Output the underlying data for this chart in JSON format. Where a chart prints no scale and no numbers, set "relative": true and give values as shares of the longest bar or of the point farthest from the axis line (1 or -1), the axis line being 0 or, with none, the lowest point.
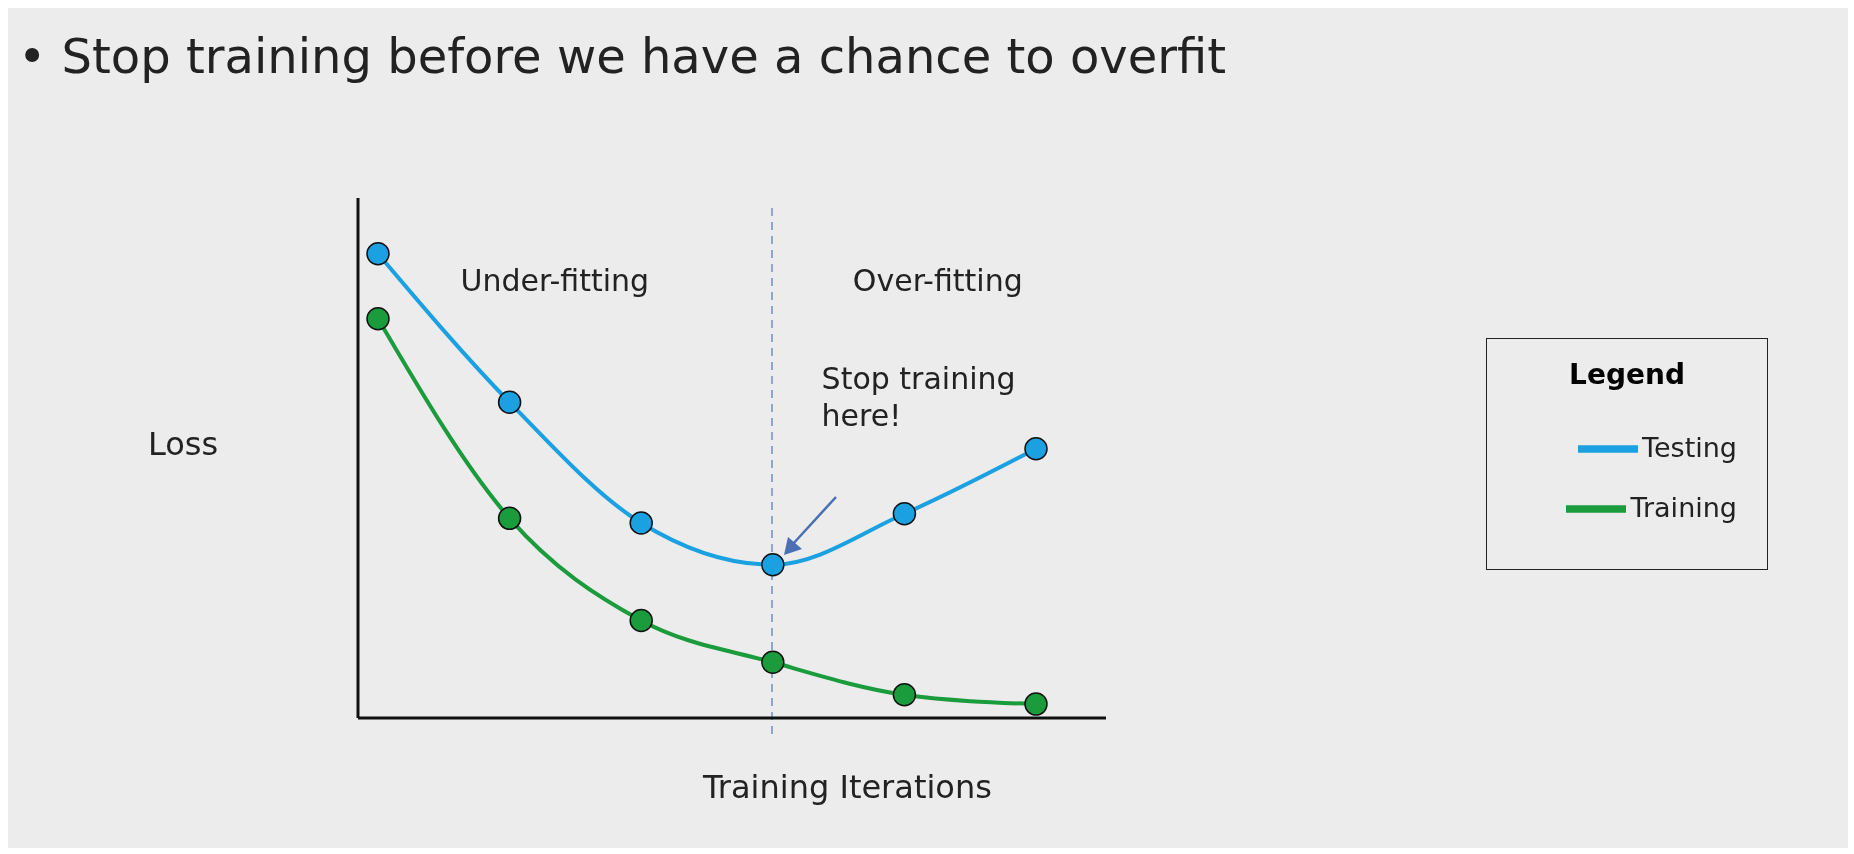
{
  "chart_data": {
    "type": "line",
    "title": "• Stop training before we have a chance to overfit",
    "xlabel": "Training Iterations",
    "ylabel": "Loss",
    "relative": true,
    "categories": [
      null,
      null,
      null,
      null,
      null,
      null
    ],
    "series": [
      {
        "name": "Testing",
        "color": "#1ba1e2",
        "values": [
          1,
          0.68,
          0.42,
          0.33,
          0.44,
          0.58
        ]
      },
      {
        "name": "Training",
        "color": "#1a9b3c",
        "values": [
          0.86,
          0.43,
          0.21,
          0.12,
          0.05,
          0.03
        ]
      }
    ],
    "annotations": [
      "Under-fitting",
      "Over-fitting",
      "Stop training here!"
    ],
    "legend": "right",
    "legend_title": "Legend",
    "marker": "circle",
    "line_style": "solid",
    "tick_labels": false
  }
}
